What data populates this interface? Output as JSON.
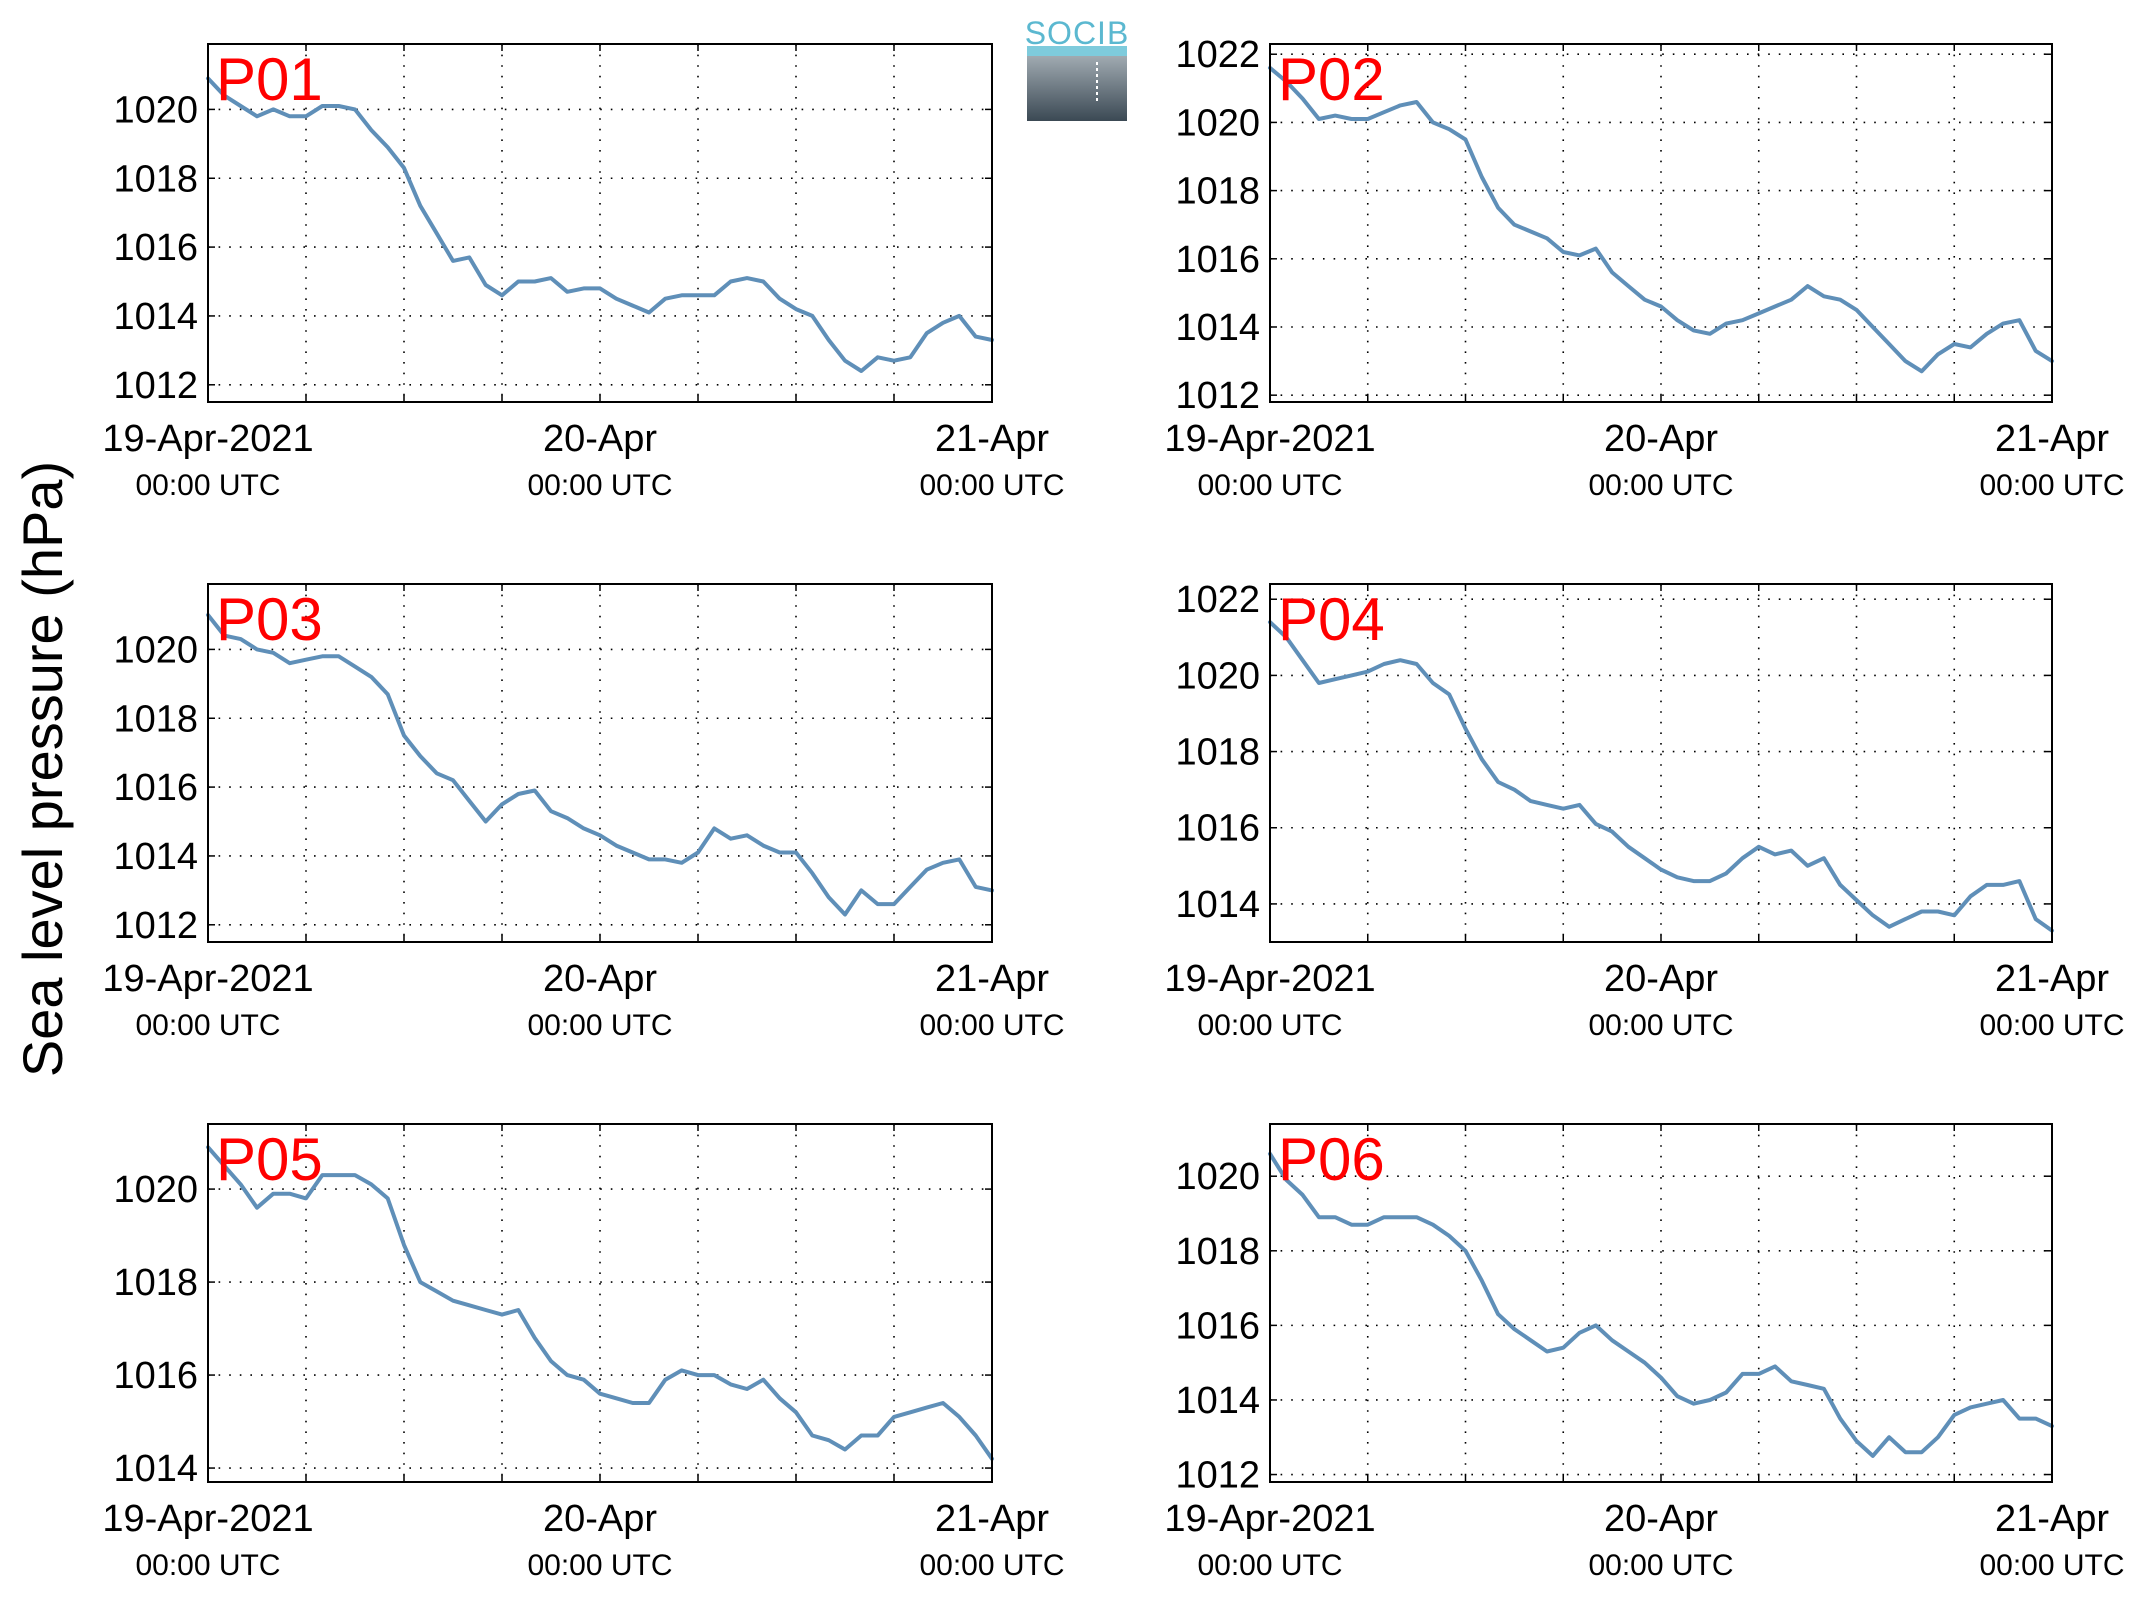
{
  "ylabel": "Sea level pressure (hPa)",
  "logo_text": "SOCIB",
  "colors": {
    "line": "#5f8fb8",
    "panel_label": "#ff0000",
    "logo_text": "#5bb8d0",
    "logo_box_top": "#9aa4ab",
    "logo_box_bottom": "#3c4a55"
  },
  "chart_data": [
    {
      "type": "line",
      "panel_label": "P01",
      "x_range_hours": [
        0,
        48
      ],
      "x_ticks": [
        {
          "hour": 0,
          "main": "19-Apr-2021",
          "sub": "00:00 UTC"
        },
        {
          "hour": 24,
          "main": "20-Apr",
          "sub": "00:00 UTC"
        },
        {
          "hour": 48,
          "main": "21-Apr",
          "sub": "00:00 UTC"
        }
      ],
      "ylim": [
        1011.5,
        1021.9
      ],
      "yticks": [
        1012,
        1014,
        1016,
        1018,
        1020
      ],
      "grid": true,
      "x": [
        0,
        1,
        2,
        3,
        4,
        5,
        6,
        7,
        8,
        9,
        10,
        11,
        12,
        13,
        14,
        15,
        16,
        17,
        18,
        19,
        20,
        21,
        22,
        23,
        24,
        25,
        26,
        27,
        28,
        29,
        30,
        31,
        32,
        33,
        34,
        35,
        36,
        37,
        38,
        39,
        40,
        41,
        42,
        43,
        44,
        45,
        46,
        47,
        48
      ],
      "values": [
        1020.9,
        1020.4,
        1020.1,
        1019.8,
        1020.0,
        1019.8,
        1019.8,
        1020.1,
        1020.1,
        1020.0,
        1019.4,
        1018.9,
        1018.3,
        1017.2,
        1016.4,
        1015.6,
        1015.7,
        1014.9,
        1014.6,
        1015.0,
        1015.0,
        1015.1,
        1014.7,
        1014.8,
        1014.8,
        1014.5,
        1014.3,
        1014.1,
        1014.5,
        1014.6,
        1014.6,
        1014.6,
        1015.0,
        1015.1,
        1015.0,
        1014.5,
        1014.2,
        1014.0,
        1013.3,
        1012.7,
        1012.4,
        1012.8,
        1012.7,
        1012.8,
        1013.5,
        1013.8,
        1014.0,
        1013.4,
        1013.3
      ]
    },
    {
      "type": "line",
      "panel_label": "P02",
      "x_range_hours": [
        0,
        48
      ],
      "x_ticks": [
        {
          "hour": 0,
          "main": "19-Apr-2021",
          "sub": "00:00 UTC"
        },
        {
          "hour": 24,
          "main": "20-Apr",
          "sub": "00:00 UTC"
        },
        {
          "hour": 48,
          "main": "21-Apr",
          "sub": "00:00 UTC"
        }
      ],
      "ylim": [
        1011.8,
        1022.3
      ],
      "yticks": [
        1012,
        1014,
        1016,
        1018,
        1020,
        1022
      ],
      "grid": true,
      "x": [
        0,
        1,
        2,
        3,
        4,
        5,
        6,
        7,
        8,
        9,
        10,
        11,
        12,
        13,
        14,
        15,
        16,
        17,
        18,
        19,
        20,
        21,
        22,
        23,
        24,
        25,
        26,
        27,
        28,
        29,
        30,
        31,
        32,
        33,
        34,
        35,
        36,
        37,
        38,
        39,
        40,
        41,
        42,
        43,
        44,
        45,
        46,
        47,
        48
      ],
      "values": [
        1021.6,
        1021.2,
        1020.7,
        1020.1,
        1020.2,
        1020.1,
        1020.1,
        1020.3,
        1020.5,
        1020.6,
        1020.0,
        1019.8,
        1019.5,
        1018.4,
        1017.5,
        1017.0,
        1016.8,
        1016.6,
        1016.2,
        1016.1,
        1016.3,
        1015.6,
        1015.2,
        1014.8,
        1014.6,
        1014.2,
        1013.9,
        1013.8,
        1014.1,
        1014.2,
        1014.4,
        1014.6,
        1014.8,
        1015.2,
        1014.9,
        1014.8,
        1014.5,
        1014.0,
        1013.5,
        1013.0,
        1012.7,
        1013.2,
        1013.5,
        1013.4,
        1013.8,
        1014.1,
        1014.2,
        1013.3,
        1013.0
      ]
    },
    {
      "type": "line",
      "panel_label": "P03",
      "x_range_hours": [
        0,
        48
      ],
      "x_ticks": [
        {
          "hour": 0,
          "main": "19-Apr-2021",
          "sub": "00:00 UTC"
        },
        {
          "hour": 24,
          "main": "20-Apr",
          "sub": "00:00 UTC"
        },
        {
          "hour": 48,
          "main": "21-Apr",
          "sub": "00:00 UTC"
        }
      ],
      "ylim": [
        1011.5,
        1021.9
      ],
      "yticks": [
        1012,
        1014,
        1016,
        1018,
        1020
      ],
      "grid": true,
      "x": [
        0,
        1,
        2,
        3,
        4,
        5,
        6,
        7,
        8,
        9,
        10,
        11,
        12,
        13,
        14,
        15,
        16,
        17,
        18,
        19,
        20,
        21,
        22,
        23,
        24,
        25,
        26,
        27,
        28,
        29,
        30,
        31,
        32,
        33,
        34,
        35,
        36,
        37,
        38,
        39,
        40,
        41,
        42,
        43,
        44,
        45,
        46,
        47,
        48
      ],
      "values": [
        1021.0,
        1020.4,
        1020.3,
        1020.0,
        1019.9,
        1019.6,
        1019.7,
        1019.8,
        1019.8,
        1019.5,
        1019.2,
        1018.7,
        1017.5,
        1016.9,
        1016.4,
        1016.2,
        1015.6,
        1015.0,
        1015.5,
        1015.8,
        1015.9,
        1015.3,
        1015.1,
        1014.8,
        1014.6,
        1014.3,
        1014.1,
        1013.9,
        1013.9,
        1013.8,
        1014.1,
        1014.8,
        1014.5,
        1014.6,
        1014.3,
        1014.1,
        1014.1,
        1013.5,
        1012.8,
        1012.3,
        1013.0,
        1012.6,
        1012.6,
        1013.1,
        1013.6,
        1013.8,
        1013.9,
        1013.1,
        1013.0
      ]
    },
    {
      "type": "line",
      "panel_label": "P04",
      "x_range_hours": [
        0,
        48
      ],
      "x_ticks": [
        {
          "hour": 0,
          "main": "19-Apr-2021",
          "sub": "00:00 UTC"
        },
        {
          "hour": 24,
          "main": "20-Apr",
          "sub": "00:00 UTC"
        },
        {
          "hour": 48,
          "main": "21-Apr",
          "sub": "00:00 UTC"
        }
      ],
      "ylim": [
        1013.0,
        1022.4
      ],
      "yticks": [
        1014,
        1016,
        1018,
        1020,
        1022
      ],
      "grid": true,
      "x": [
        0,
        1,
        2,
        3,
        4,
        5,
        6,
        7,
        8,
        9,
        10,
        11,
        12,
        13,
        14,
        15,
        16,
        17,
        18,
        19,
        20,
        21,
        22,
        23,
        24,
        25,
        26,
        27,
        28,
        29,
        30,
        31,
        32,
        33,
        34,
        35,
        36,
        37,
        38,
        39,
        40,
        41,
        42,
        43,
        44,
        45,
        46,
        47,
        48
      ],
      "values": [
        1021.4,
        1021.0,
        1020.4,
        1019.8,
        1019.9,
        1020.0,
        1020.1,
        1020.3,
        1020.4,
        1020.3,
        1019.8,
        1019.5,
        1018.6,
        1017.8,
        1017.2,
        1017.0,
        1016.7,
        1016.6,
        1016.5,
        1016.6,
        1016.1,
        1015.9,
        1015.5,
        1015.2,
        1014.9,
        1014.7,
        1014.6,
        1014.6,
        1014.8,
        1015.2,
        1015.5,
        1015.3,
        1015.4,
        1015.0,
        1015.2,
        1014.5,
        1014.1,
        1013.7,
        1013.4,
        1013.6,
        1013.8,
        1013.8,
        1013.7,
        1014.2,
        1014.5,
        1014.5,
        1014.6,
        1013.6,
        1013.3
      ]
    },
    {
      "type": "line",
      "panel_label": "P05",
      "x_range_hours": [
        0,
        48
      ],
      "x_ticks": [
        {
          "hour": 0,
          "main": "19-Apr-2021",
          "sub": "00:00 UTC"
        },
        {
          "hour": 24,
          "main": "20-Apr",
          "sub": "00:00 UTC"
        },
        {
          "hour": 48,
          "main": "21-Apr",
          "sub": "00:00 UTC"
        }
      ],
      "ylim": [
        1013.7,
        1021.4
      ],
      "yticks": [
        1014,
        1016,
        1018,
        1020
      ],
      "grid": true,
      "x": [
        0,
        1,
        2,
        3,
        4,
        5,
        6,
        7,
        8,
        9,
        10,
        11,
        12,
        13,
        14,
        15,
        16,
        17,
        18,
        19,
        20,
        21,
        22,
        23,
        24,
        25,
        26,
        27,
        28,
        29,
        30,
        31,
        32,
        33,
        34,
        35,
        36,
        37,
        38,
        39,
        40,
        41,
        42,
        43,
        44,
        45,
        46,
        47,
        48
      ],
      "values": [
        1020.9,
        1020.5,
        1020.1,
        1019.6,
        1019.9,
        1019.9,
        1019.8,
        1020.3,
        1020.3,
        1020.3,
        1020.1,
        1019.8,
        1018.8,
        1018.0,
        1017.8,
        1017.6,
        1017.5,
        1017.4,
        1017.3,
        1017.4,
        1016.8,
        1016.3,
        1016.0,
        1015.9,
        1015.6,
        1015.5,
        1015.4,
        1015.4,
        1015.9,
        1016.1,
        1016.0,
        1016.0,
        1015.8,
        1015.7,
        1015.9,
        1015.5,
        1015.2,
        1014.7,
        1014.6,
        1014.4,
        1014.7,
        1014.7,
        1015.1,
        1015.2,
        1015.3,
        1015.4,
        1015.1,
        1014.7,
        1014.2
      ]
    },
    {
      "type": "line",
      "panel_label": "P06",
      "x_range_hours": [
        0,
        48
      ],
      "x_ticks": [
        {
          "hour": 0,
          "main": "19-Apr-2021",
          "sub": "00:00 UTC"
        },
        {
          "hour": 24,
          "main": "20-Apr",
          "sub": "00:00 UTC"
        },
        {
          "hour": 48,
          "main": "21-Apr",
          "sub": "00:00 UTC"
        }
      ],
      "ylim": [
        1011.8,
        1021.4
      ],
      "yticks": [
        1012,
        1014,
        1016,
        1018,
        1020
      ],
      "grid": true,
      "x": [
        0,
        1,
        2,
        3,
        4,
        5,
        6,
        7,
        8,
        9,
        10,
        11,
        12,
        13,
        14,
        15,
        16,
        17,
        18,
        19,
        20,
        21,
        22,
        23,
        24,
        25,
        26,
        27,
        28,
        29,
        30,
        31,
        32,
        33,
        34,
        35,
        36,
        37,
        38,
        39,
        40,
        41,
        42,
        43,
        44,
        45,
        46,
        47,
        48
      ],
      "values": [
        1020.6,
        1019.9,
        1019.5,
        1018.9,
        1018.9,
        1018.7,
        1018.7,
        1018.9,
        1018.9,
        1018.9,
        1018.7,
        1018.4,
        1018.0,
        1017.2,
        1016.3,
        1015.9,
        1015.6,
        1015.3,
        1015.4,
        1015.8,
        1016.0,
        1015.6,
        1015.3,
        1015.0,
        1014.6,
        1014.1,
        1013.9,
        1014.0,
        1014.2,
        1014.7,
        1014.7,
        1014.9,
        1014.5,
        1014.4,
        1014.3,
        1013.5,
        1012.9,
        1012.5,
        1013.0,
        1012.6,
        1012.6,
        1013.0,
        1013.6,
        1013.8,
        1013.9,
        1014.0,
        1013.5,
        1013.5,
        1013.3
      ]
    }
  ]
}
